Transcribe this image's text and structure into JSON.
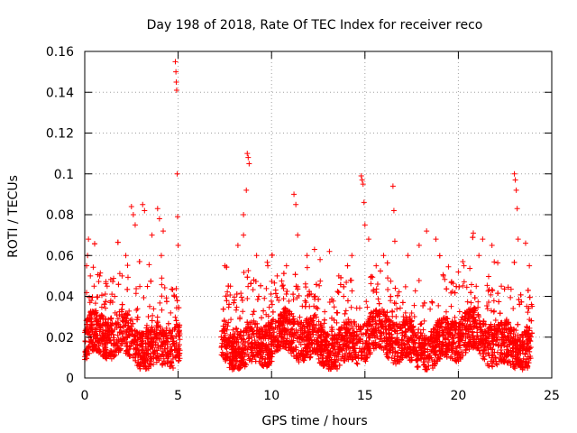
{
  "chart_data": {
    "type": "scatter",
    "title": "Day 198 of 2018, Rate Of TEC Index for receiver reco",
    "xlabel": "GPS time / hours",
    "ylabel": "ROTI / TECUs",
    "xlim": [
      0,
      25
    ],
    "ylim": [
      0,
      0.16
    ],
    "xticks": [
      0,
      5,
      10,
      15,
      20,
      25
    ],
    "yticks": [
      0,
      0.02,
      0.04,
      0.06,
      0.08,
      0.1,
      0.12,
      0.14,
      0.16
    ],
    "xtick_labels": [
      "0",
      "5",
      "10",
      "15",
      "20",
      "25"
    ],
    "ytick_labels": [
      "0",
      "0.02",
      "0.04",
      "0.06",
      "0.08",
      "0.1",
      "0.12",
      "0.14",
      "0.16"
    ],
    "grid": true,
    "marker": "+",
    "color": "#ff0000",
    "data_gap_hours": [
      5.1,
      7.3
    ],
    "series": [
      {
        "name": "ROTI",
        "points": [
          [
            0.1,
            0.055
          ],
          [
            0.15,
            0.06
          ],
          [
            0.2,
            0.068
          ],
          [
            0.3,
            0.05
          ],
          [
            0.5,
            0.045
          ],
          [
            0.8,
            0.05
          ],
          [
            1.2,
            0.045
          ],
          [
            1.6,
            0.04
          ],
          [
            2.0,
            0.05
          ],
          [
            2.2,
            0.06
          ],
          [
            2.5,
            0.084
          ],
          [
            2.6,
            0.08
          ],
          [
            2.7,
            0.075
          ],
          [
            3.1,
            0.085
          ],
          [
            3.2,
            0.082
          ],
          [
            3.6,
            0.07
          ],
          [
            3.9,
            0.083
          ],
          [
            4.0,
            0.078
          ],
          [
            4.1,
            0.06
          ],
          [
            4.2,
            0.072
          ],
          [
            4.85,
            0.155
          ],
          [
            4.88,
            0.15
          ],
          [
            4.9,
            0.145
          ],
          [
            4.92,
            0.141
          ],
          [
            4.95,
            0.1
          ],
          [
            4.97,
            0.079
          ],
          [
            5.0,
            0.065
          ],
          [
            4.8,
            0.04
          ],
          [
            7.5,
            0.055
          ],
          [
            7.8,
            0.045
          ],
          [
            8.2,
            0.065
          ],
          [
            8.5,
            0.07
          ],
          [
            8.7,
            0.11
          ],
          [
            8.75,
            0.108
          ],
          [
            8.8,
            0.105
          ],
          [
            8.65,
            0.092
          ],
          [
            8.5,
            0.08
          ],
          [
            9.2,
            0.06
          ],
          [
            9.8,
            0.055
          ],
          [
            10.3,
            0.05
          ],
          [
            10.8,
            0.055
          ],
          [
            11.2,
            0.09
          ],
          [
            11.3,
            0.085
          ],
          [
            11.4,
            0.07
          ],
          [
            11.9,
            0.06
          ],
          [
            12.3,
            0.063
          ],
          [
            12.6,
            0.058
          ],
          [
            13.1,
            0.062
          ],
          [
            13.6,
            0.05
          ],
          [
            14.3,
            0.06
          ],
          [
            14.8,
            0.099
          ],
          [
            14.85,
            0.097
          ],
          [
            14.9,
            0.095
          ],
          [
            14.95,
            0.086
          ],
          [
            15.0,
            0.075
          ],
          [
            15.2,
            0.068
          ],
          [
            15.6,
            0.055
          ],
          [
            16.0,
            0.06
          ],
          [
            16.5,
            0.094
          ],
          [
            16.55,
            0.082
          ],
          [
            16.6,
            0.067
          ],
          [
            17.3,
            0.06
          ],
          [
            17.9,
            0.065
          ],
          [
            18.3,
            0.072
          ],
          [
            18.8,
            0.068
          ],
          [
            19.2,
            0.05
          ],
          [
            20.3,
            0.055
          ],
          [
            20.8,
            0.071
          ],
          [
            21.1,
            0.06
          ],
          [
            21.3,
            0.068
          ],
          [
            21.8,
            0.065
          ],
          [
            22.3,
            0.045
          ],
          [
            23.0,
            0.1
          ],
          [
            23.05,
            0.097
          ],
          [
            23.1,
            0.092
          ],
          [
            23.15,
            0.083
          ],
          [
            23.2,
            0.068
          ],
          [
            23.6,
            0.066
          ],
          [
            23.8,
            0.055
          ]
        ]
      }
    ]
  }
}
